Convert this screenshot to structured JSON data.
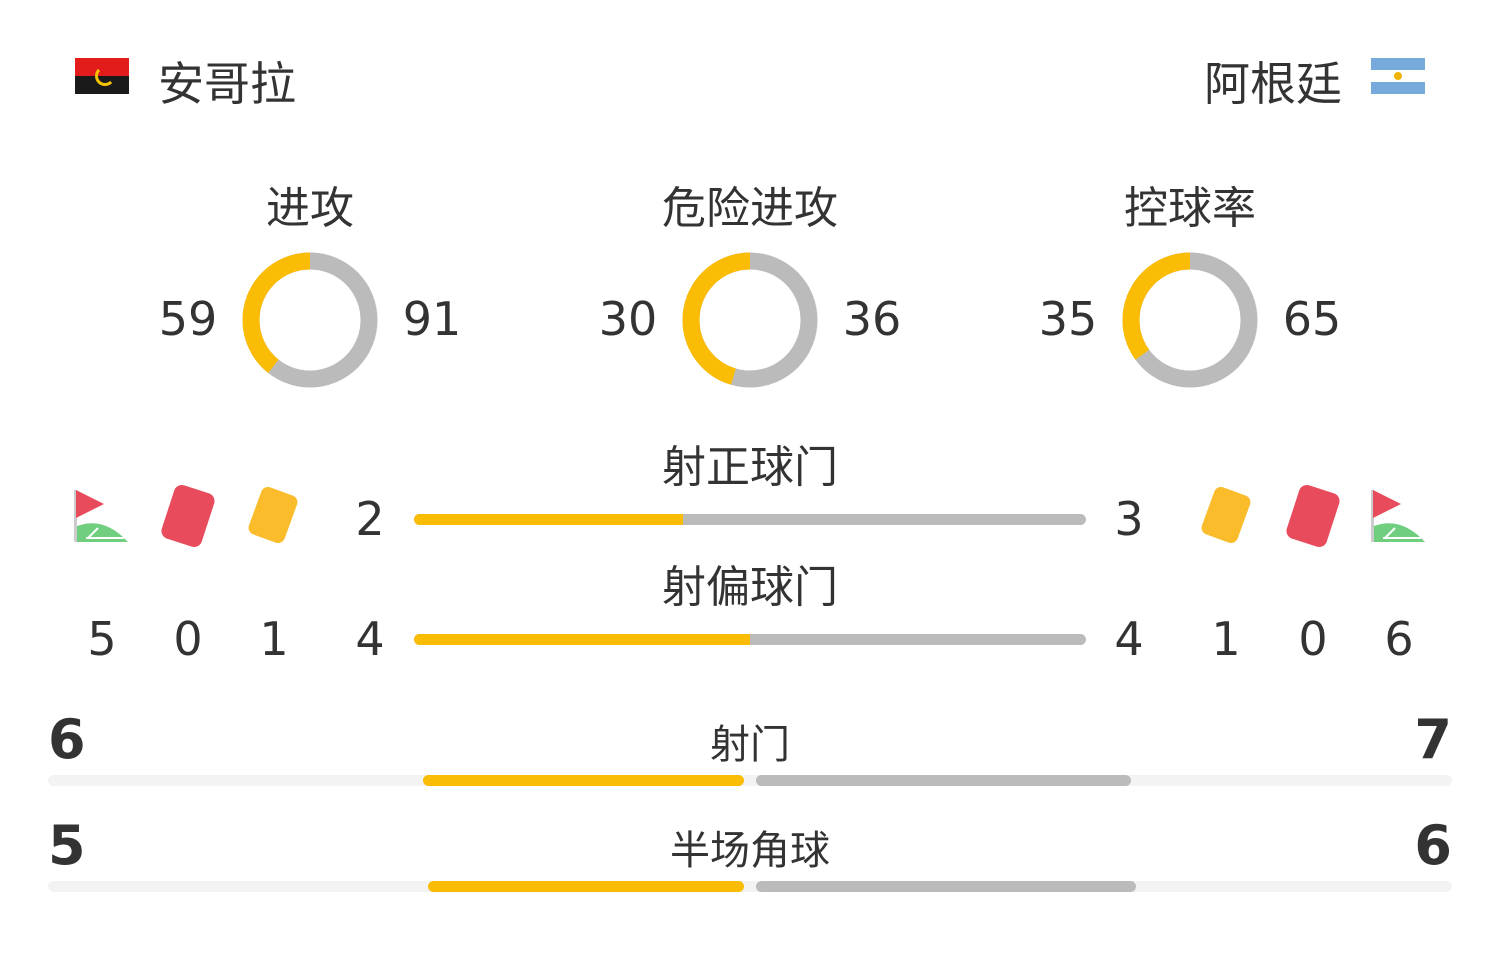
{
  "home": {
    "name": "安哥拉",
    "flag": "angola-flag"
  },
  "away": {
    "name": "阿根廷",
    "flag": "argentina-flag"
  },
  "colors": {
    "home": "#fbbc05",
    "away": "#bbbbbb",
    "red_card": "#e84c5c",
    "yellow_card": "#fbbc2c",
    "corner": "#6fcf7f"
  },
  "donuts": [
    {
      "label": "进攻",
      "home": "59",
      "away": "91",
      "home_value": 59,
      "away_value": 91
    },
    {
      "label": "危险进攻",
      "home": "30",
      "away": "36",
      "home_value": 30,
      "away_value": 36
    },
    {
      "label": "控球率",
      "home": "35",
      "away": "65",
      "home_value": 35,
      "away_value": 65
    }
  ],
  "bars": [
    {
      "label": "射正球门",
      "home": "2",
      "away": "3",
      "home_value": 2,
      "away_value": 3
    },
    {
      "label": "射偏球门",
      "home": "4",
      "away": "4",
      "home_value": 4,
      "away_value": 4
    }
  ],
  "home_counts": {
    "corners": "5",
    "red": "0",
    "yellow": "1"
  },
  "away_counts": {
    "yellow": "1",
    "red": "0",
    "corners": "6"
  },
  "split": [
    {
      "label": "射门",
      "home": "6",
      "away": "7",
      "home_value": 6,
      "away_value": 7
    },
    {
      "label": "半场角球",
      "home": "5",
      "away": "6",
      "home_value": 5,
      "away_value": 6
    }
  ]
}
